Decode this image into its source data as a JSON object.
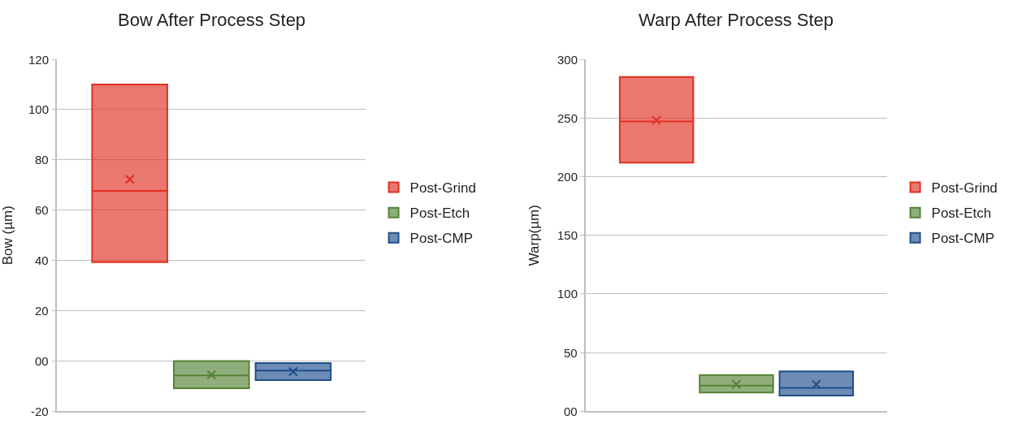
{
  "chart_data": [
    {
      "type": "box",
      "title": "Bow After Process Step",
      "ylabel": "Bow (µm)",
      "categories": [
        null
      ],
      "series": [
        {
          "name": "Post-Grind",
          "color": "#e03020",
          "boxes": [
            {
              "q1": 39.3,
              "median": 67.7,
              "q3": 110,
              "mean": 72.3
            }
          ]
        },
        {
          "name": "Post-Etch",
          "color": "#548235",
          "boxes": [
            {
              "q1": -10.8,
              "median": -5.7,
              "q3": 0,
              "mean": -5.5
            }
          ]
        },
        {
          "name": "Post-CMP",
          "color": "#1f4e8c",
          "boxes": [
            {
              "q1": -7.6,
              "median": -3.8,
              "q3": -0.8,
              "mean": -4.2
            }
          ]
        }
      ],
      "ylim": [
        -20,
        120
      ],
      "yticks": [
        -20,
        {
          "value": 0,
          "label": "00"
        },
        20,
        40,
        60,
        80,
        100,
        120
      ],
      "grid": "y",
      "legend": "right",
      "tick_labels": "y"
    },
    {
      "type": "box",
      "title": "Warp After Process Step",
      "ylabel": "Warp(µm)",
      "categories": [
        null
      ],
      "series": [
        {
          "name": "Post-Grind",
          "color": "#e03020",
          "boxes": [
            {
              "q1": 212,
              "median": 247,
              "q3": 285,
              "mean": 248
            }
          ]
        },
        {
          "name": "Post-Etch",
          "color": "#548235",
          "boxes": [
            {
              "q1": 16,
              "median": 22,
              "q3": 31,
              "mean": 23
            }
          ]
        },
        {
          "name": "Post-CMP",
          "color": "#1f4e8c",
          "boxes": [
            {
              "q1": 13.5,
              "median": 20,
              "q3": 34,
              "mean": 23
            }
          ]
        }
      ],
      "ylim": [
        0,
        300
      ],
      "yticks": [
        {
          "value": 0,
          "label": "00"
        },
        50,
        100,
        150,
        200,
        250,
        300
      ],
      "grid": "y",
      "legend": "right",
      "tick_labels": "y"
    }
  ]
}
